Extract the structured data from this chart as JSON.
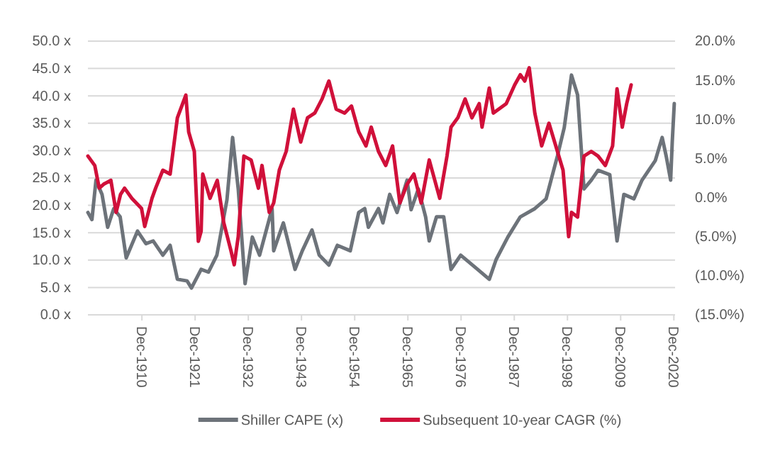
{
  "chart_data": {
    "type": "line",
    "xlim": [
      "1899-10",
      "2021-03"
    ],
    "xticks": [
      {
        "value": "1910-12",
        "label": "Dec-1910"
      },
      {
        "value": "1921-12",
        "label": "Dec-1921"
      },
      {
        "value": "1932-12",
        "label": "Dec-1932"
      },
      {
        "value": "1943-12",
        "label": "Dec-1943"
      },
      {
        "value": "1954-12",
        "label": "Dec-1954"
      },
      {
        "value": "1965-12",
        "label": "Dec-1965"
      },
      {
        "value": "1976-12",
        "label": "Dec-1976"
      },
      {
        "value": "1987-12",
        "label": "Dec-1987"
      },
      {
        "value": "1998-12",
        "label": "Dec-1998"
      },
      {
        "value": "2009-12",
        "label": "Dec-2009"
      },
      {
        "value": "2020-12",
        "label": "Dec-2020"
      }
    ],
    "ylim": [
      0,
      50
    ],
    "yticks": [
      {
        "value": 0,
        "label": "0.0 x"
      },
      {
        "value": 5,
        "label": "5.0 x"
      },
      {
        "value": 10,
        "label": "10.0 x"
      },
      {
        "value": 15,
        "label": "15.0 x"
      },
      {
        "value": 20,
        "label": "20.0 x"
      },
      {
        "value": 25,
        "label": "25.0 x"
      },
      {
        "value": 30,
        "label": "30.0 x"
      },
      {
        "value": 35,
        "label": "35.0 x"
      },
      {
        "value": 40,
        "label": "40.0 x"
      },
      {
        "value": 45,
        "label": "45.0 x"
      },
      {
        "value": 50,
        "label": "50.0 x"
      }
    ],
    "y2lim": [
      -15,
      20
    ],
    "y2ticks": [
      {
        "value": -15,
        "label": "(15.0%)"
      },
      {
        "value": -10,
        "label": "(10.0%)"
      },
      {
        "value": -5,
        "label": "(5.0%)"
      },
      {
        "value": 0,
        "label": "0.0%"
      },
      {
        "value": 5,
        "label": "5.0%"
      },
      {
        "value": 10,
        "label": "10.0%"
      },
      {
        "value": 15,
        "label": "15.0%"
      },
      {
        "value": 20,
        "label": "20.0%"
      }
    ],
    "grid": "y",
    "legend": "bottom",
    "series": [
      {
        "name": "Shiller CAPE (x)",
        "color": "#6d737a",
        "x": [
          "1899-10",
          "1900-08",
          "1901-06",
          "1902-09",
          "1903-11",
          "1905-02",
          "1906-06",
          "1907-09",
          "1910-01",
          "1911-10",
          "1913-04",
          "1915-04",
          "1916-10",
          "1918-04",
          "1920-04",
          "1921-03",
          "1923-03",
          "1924-09",
          "1926-06",
          "1928-07",
          "1929-09",
          "1930-11",
          "1932-04",
          "1933-10",
          "1935-04",
          "1937-11",
          "1938-03",
          "1940-03",
          "1942-08",
          "1944-02",
          "1946-02",
          "1947-08",
          "1949-08",
          "1951-05",
          "1954-01",
          "1955-10",
          "1957-01",
          "1957-10",
          "1959-11",
          "1960-10",
          "1962-03",
          "1963-09",
          "1965-10",
          "1966-08",
          "1968-02",
          "1969-08",
          "1970-05",
          "1971-11",
          "1973-05",
          "1974-11",
          "1976-11",
          "1980-05",
          "1982-10",
          "1984-03",
          "1986-08",
          "1989-03",
          "1992-03",
          "1994-07",
          "1996-11",
          "1998-04",
          "1999-10",
          "2001-01",
          "2002-05",
          "2003-11",
          "2005-04",
          "2007-09",
          "2009-03",
          "2010-08",
          "2012-09",
          "2014-05",
          "2017-02",
          "2018-07",
          "2019-05",
          "2020-04",
          "2020-08",
          "2021-01"
        ],
        "values": [
          18.7,
          17.4,
          24.6,
          22,
          16,
          19.4,
          17.9,
          10.4,
          15.3,
          13,
          13.5,
          10.9,
          12.7,
          6.5,
          6.2,
          4.9,
          8.3,
          7.8,
          10.9,
          21,
          32.4,
          23,
          5.7,
          14.2,
          10.9,
          19.4,
          11.7,
          16.8,
          8.3,
          11.7,
          15.5,
          10.9,
          9.1,
          12.7,
          11.7,
          18.7,
          19.4,
          16,
          19.4,
          16.8,
          22,
          18.7,
          24.6,
          19.2,
          23,
          17.9,
          13.5,
          17.9,
          17.9,
          8.3,
          10.9,
          8.3,
          6.5,
          10.1,
          14.2,
          17.9,
          19.4,
          21.2,
          29,
          34.2,
          43.8,
          40.2,
          23,
          24.6,
          26.4,
          25.6,
          13.5,
          22,
          21.2,
          24.6,
          28.2,
          32.4,
          29,
          24.6,
          31.6,
          38.6
        ]
      },
      {
        "name": "Subsequent 10-year CAGR (%)",
        "color": "#d0103a",
        "axis": "y2",
        "x": [
          "1899-10",
          "1901-03",
          "1902-02",
          "1903-01",
          "1904-07",
          "1905-08",
          "1906-07",
          "1907-05",
          "1908-11",
          "1910-11",
          "1911-07",
          "1913-01",
          "1913-10",
          "1915-04",
          "1916-10",
          "1918-04",
          "1920-01",
          "1920-08",
          "1921-10",
          "1922-08",
          "1923-03",
          "1923-07",
          "1925-01",
          "1926-07",
          "1927-11",
          "1929-05",
          "1930-01",
          "1930-11",
          "1932-01",
          "1933-07",
          "1935-01",
          "1935-10",
          "1937-04",
          "1938-03",
          "1939-05",
          "1940-10",
          "1942-04",
          "1943-10",
          "1945-03",
          "1946-09",
          "1948-03",
          "1949-08",
          "1951-02",
          "1952-11",
          "1954-04",
          "1955-10",
          "1957-04",
          "1958-05",
          "1959-11",
          "1961-05",
          "1962-10",
          "1964-04",
          "1965-10",
          "1967-03",
          "1968-09",
          "1970-05",
          "1972-07",
          "1974-01",
          "1974-11",
          "1976-04",
          "1977-10",
          "1979-03",
          "1980-09",
          "1981-04",
          "1982-10",
          "1983-08",
          "1986-04",
          "1988-01",
          "1989-03",
          "1990-02",
          "1991-01",
          "1992-03",
          "1993-08",
          "1995-02",
          "1996-07",
          "1998-01",
          "1999-03",
          "1999-10",
          "2001-01",
          "2002-05",
          "2003-11",
          "2005-04",
          "2006-10",
          "2008-04",
          "2009-03",
          "2010-04",
          "2011-03",
          "2012-02"
        ],
        "values": [
          5.3,
          4.1,
          1.2,
          1.7,
          2.2,
          -1.9,
          0.4,
          1.2,
          -0.1,
          -1.4,
          -3.7,
          -0.1,
          1.2,
          3.5,
          3.0,
          10.2,
          13.1,
          8.4,
          5.9,
          -5.6,
          -4.3,
          3.0,
          -0.1,
          2.2,
          -3.2,
          -6.8,
          -8.6,
          -5.0,
          5.3,
          4.8,
          1.2,
          4.1,
          -1.9,
          -0.7,
          3.5,
          5.9,
          11.3,
          7.1,
          10.2,
          10.8,
          12.6,
          14.9,
          11.3,
          10.8,
          11.7,
          8.4,
          6.6,
          9.0,
          5.9,
          4.1,
          6.6,
          -0.7,
          1.7,
          3.0,
          -0.7,
          4.8,
          -0.1,
          5.3,
          9.0,
          10.2,
          12.6,
          10.2,
          12.0,
          9.0,
          14.0,
          10.8,
          12.0,
          14.4,
          15.7,
          14.9,
          16.6,
          10.8,
          6.6,
          9.5,
          6.6,
          3.5,
          -5.0,
          -1.9,
          -2.5,
          5.3,
          5.9,
          5.3,
          4.1,
          6.6,
          13.9,
          9.0,
          12.0,
          14.4
        ]
      }
    ]
  }
}
